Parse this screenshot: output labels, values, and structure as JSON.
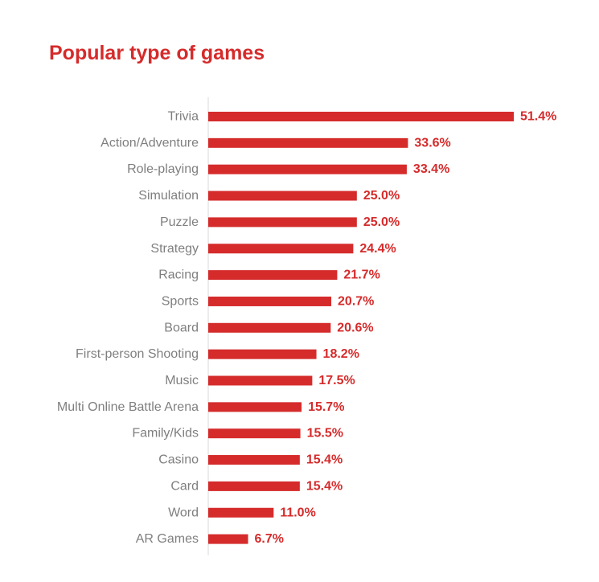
{
  "colors": {
    "accent": "#d52b2b",
    "category_text": "#7f7f7f",
    "axis_line": "#d9d9d9",
    "background": "#ffffff"
  },
  "chart_data": {
    "type": "bar",
    "orientation": "horizontal",
    "title": "Popular type of games",
    "xlabel": "",
    "ylabel": "",
    "unit": "%",
    "categories": [
      "Trivia",
      "Action/Adventure",
      "Role-playing",
      "Simulation",
      "Puzzle",
      "Strategy",
      "Racing",
      "Sports",
      "Board",
      "First-person Shooting",
      "Music",
      "Multi Online Battle Arena",
      "Family/Kids",
      "Casino",
      "Card",
      "Word",
      "AR Games"
    ],
    "values": [
      51.4,
      33.6,
      33.4,
      25.0,
      25.0,
      24.4,
      21.7,
      20.7,
      20.6,
      18.2,
      17.5,
      15.7,
      15.5,
      15.4,
      15.4,
      11.0,
      6.7
    ],
    "value_labels": [
      "51.4%",
      "33.6%",
      "33.4%",
      "25.0%",
      "25.0%",
      "24.4%",
      "21.7%",
      "20.7%",
      "20.6%",
      "18.2%",
      "17.5%",
      "15.7%",
      "15.5%",
      "15.4%",
      "15.4%",
      "11.0%",
      "6.7%"
    ],
    "xlim": [
      0,
      51.4
    ],
    "grid": false,
    "legend": "none"
  }
}
